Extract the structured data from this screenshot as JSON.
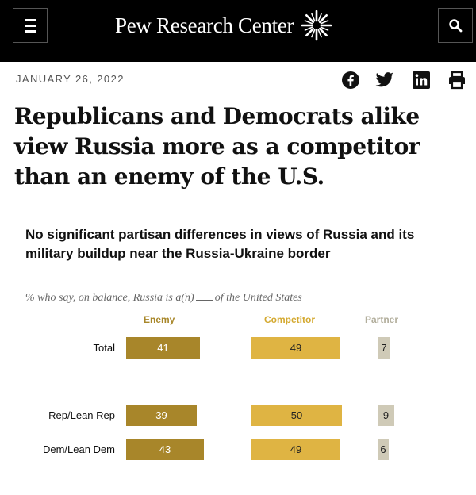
{
  "header": {
    "brand": "Pew Research Center",
    "menu_icon": "hamburger-menu-icon",
    "search_icon": "search-icon",
    "background": "#000000"
  },
  "article": {
    "date": "JANUARY 26, 2022",
    "share_icons": [
      "facebook-icon",
      "twitter-icon",
      "linkedin-icon",
      "print-icon"
    ],
    "headline": "Republicans and Democrats alike view Russia more as a competitor than an enemy of the U.S."
  },
  "chart_data": {
    "type": "bar",
    "title": "No significant partisan differences in views of Russia and its military buildup near the Russia-Ukraine border",
    "subtitle_before": "% who say, on balance, Russia is a(n)",
    "subtitle_after": "of the United States",
    "categories": [
      "Total",
      "Rep/Lean Rep",
      "Dem/Lean Dem"
    ],
    "series": [
      {
        "name": "Enemy",
        "values": [
          41,
          39,
          43
        ],
        "color": "#a8862a"
      },
      {
        "name": "Competitor",
        "values": [
          49,
          50,
          49
        ],
        "color": "#dfb443"
      },
      {
        "name": "Partner",
        "values": [
          7,
          9,
          6
        ],
        "color": "#cfcab7"
      }
    ],
    "grid": false,
    "legend": "column-headers-top"
  }
}
